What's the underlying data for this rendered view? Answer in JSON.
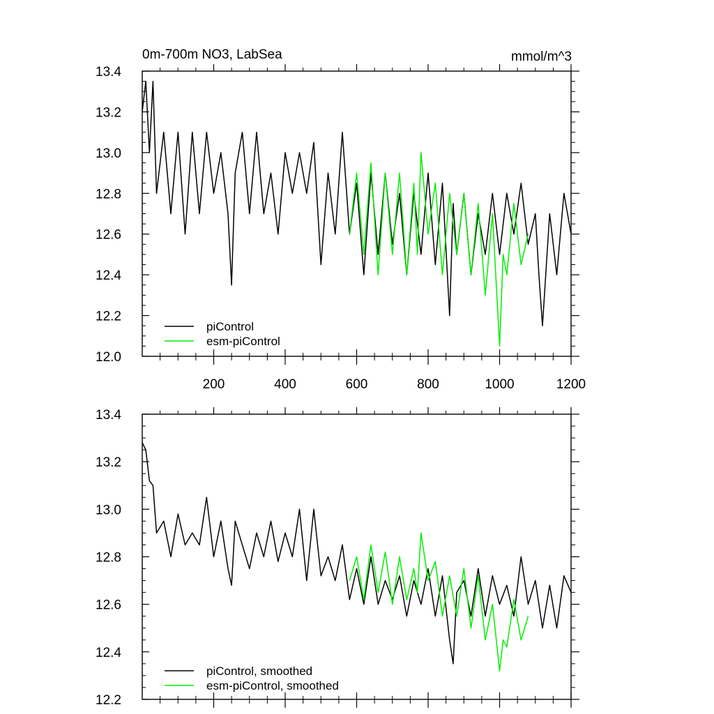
{
  "colors": {
    "series_picontrol": "#000000",
    "series_esm": "#00ee00",
    "axes": "#000000",
    "background": "#ffffff"
  },
  "chart_data": [
    {
      "type": "line",
      "title": "0m-700m NO3, LabSea",
      "units": "mmol/m^3",
      "xlabel": "",
      "ylabel": "",
      "xlim": [
        0,
        1200
      ],
      "ylim": [
        12.0,
        13.4
      ],
      "x_ticks": [
        200,
        400,
        600,
        800,
        1000,
        1200
      ],
      "x_tick_labels": [
        "200",
        "400",
        "600",
        "800",
        "1000",
        "1200"
      ],
      "y_ticks": [
        12.0,
        12.2,
        12.4,
        12.6,
        12.8,
        13.0,
        13.2,
        13.4
      ],
      "y_tick_labels": [
        "12.0",
        "12.2",
        "12.4",
        "12.6",
        "12.8",
        "13.0",
        "13.2",
        "13.4"
      ],
      "grid": false,
      "legend_position": "bottom-left",
      "series": [
        {
          "name": "piControl",
          "color": "#000000",
          "x": [
            0,
            10,
            20,
            30,
            40,
            60,
            80,
            100,
            120,
            140,
            160,
            180,
            200,
            220,
            240,
            250,
            260,
            280,
            300,
            320,
            340,
            360,
            380,
            400,
            420,
            440,
            460,
            480,
            500,
            520,
            540,
            560,
            580,
            600,
            620,
            640,
            660,
            680,
            700,
            720,
            740,
            760,
            780,
            800,
            820,
            840,
            860,
            870,
            880,
            900,
            920,
            940,
            960,
            980,
            1000,
            1020,
            1040,
            1060,
            1080,
            1100,
            1110,
            1120,
            1140,
            1160,
            1180,
            1200
          ],
          "y": [
            13.2,
            13.35,
            13.0,
            13.35,
            12.8,
            13.1,
            12.7,
            13.1,
            12.6,
            13.1,
            12.7,
            13.1,
            12.8,
            13.0,
            12.7,
            12.35,
            12.9,
            13.1,
            12.7,
            13.1,
            12.7,
            12.9,
            12.6,
            13.0,
            12.8,
            13.0,
            12.8,
            13.05,
            12.45,
            12.9,
            12.6,
            13.1,
            12.6,
            12.85,
            12.4,
            12.9,
            12.5,
            12.9,
            12.55,
            12.8,
            12.4,
            12.8,
            12.5,
            12.9,
            12.45,
            12.85,
            12.2,
            12.75,
            12.5,
            12.8,
            12.4,
            12.7,
            12.5,
            12.8,
            12.5,
            12.8,
            12.6,
            12.85,
            12.55,
            12.7,
            12.4,
            12.15,
            12.7,
            12.4,
            12.8,
            12.6
          ]
        },
        {
          "name": "esm-piControl",
          "color": "#00ee00",
          "x": [
            580,
            600,
            620,
            640,
            660,
            680,
            700,
            720,
            740,
            760,
            770,
            780,
            800,
            820,
            840,
            860,
            880,
            900,
            920,
            940,
            960,
            980,
            1000,
            1010,
            1020,
            1040,
            1060,
            1080
          ],
          "y": [
            12.6,
            12.9,
            12.5,
            12.95,
            12.4,
            12.9,
            12.5,
            12.9,
            12.4,
            12.85,
            12.5,
            13.0,
            12.6,
            12.85,
            12.4,
            12.8,
            12.5,
            12.8,
            12.4,
            12.75,
            12.3,
            12.7,
            12.05,
            12.5,
            12.4,
            12.75,
            12.45,
            12.6
          ]
        }
      ]
    },
    {
      "type": "line",
      "title": "",
      "units": "",
      "xlabel": "",
      "ylabel": "",
      "xlim": [
        0,
        1200
      ],
      "ylim": [
        12.2,
        13.4
      ],
      "x_ticks": [
        200,
        400,
        600,
        800,
        1000,
        1200
      ],
      "x_tick_labels": [],
      "y_ticks": [
        12.2,
        12.4,
        12.6,
        12.8,
        13.0,
        13.2,
        13.4
      ],
      "y_tick_labels": [
        "12.2",
        "12.4",
        "12.6",
        "12.8",
        "13.0",
        "13.2",
        "13.4"
      ],
      "grid": false,
      "legend_position": "bottom-left",
      "series": [
        {
          "name": "piControl, smoothed",
          "color": "#000000",
          "x": [
            0,
            10,
            20,
            30,
            40,
            60,
            80,
            100,
            120,
            140,
            160,
            180,
            200,
            220,
            240,
            250,
            260,
            280,
            300,
            320,
            340,
            360,
            380,
            400,
            420,
            440,
            460,
            480,
            500,
            520,
            540,
            560,
            580,
            600,
            620,
            640,
            660,
            680,
            700,
            720,
            740,
            760,
            780,
            800,
            820,
            840,
            860,
            870,
            880,
            900,
            920,
            940,
            960,
            980,
            1000,
            1020,
            1040,
            1060,
            1080,
            1100,
            1120,
            1140,
            1160,
            1180,
            1200
          ],
          "y": [
            13.28,
            13.25,
            13.12,
            13.1,
            12.9,
            12.95,
            12.8,
            12.98,
            12.85,
            12.9,
            12.85,
            13.05,
            12.8,
            12.95,
            12.75,
            12.68,
            12.95,
            12.85,
            12.75,
            12.9,
            12.8,
            12.95,
            12.78,
            12.9,
            12.8,
            13.0,
            12.7,
            13.0,
            12.72,
            12.8,
            12.7,
            12.85,
            12.62,
            12.75,
            12.6,
            12.8,
            12.6,
            12.7,
            12.62,
            12.72,
            12.55,
            12.7,
            12.6,
            12.75,
            12.55,
            12.72,
            12.45,
            12.35,
            12.65,
            12.7,
            12.55,
            12.75,
            12.55,
            12.72,
            12.6,
            12.68,
            12.55,
            12.8,
            12.6,
            12.7,
            12.5,
            12.68,
            12.5,
            12.72,
            12.65
          ]
        },
        {
          "name": "esm-piControl, smoothed",
          "color": "#00ee00",
          "x": [
            580,
            600,
            620,
            640,
            660,
            680,
            700,
            720,
            740,
            760,
            770,
            780,
            800,
            820,
            840,
            860,
            880,
            900,
            920,
            940,
            960,
            980,
            1000,
            1010,
            1020,
            1040,
            1060,
            1080
          ],
          "y": [
            12.7,
            12.8,
            12.62,
            12.85,
            12.65,
            12.82,
            12.6,
            12.8,
            12.62,
            12.75,
            12.65,
            12.9,
            12.7,
            12.78,
            12.55,
            12.72,
            12.55,
            12.75,
            12.5,
            12.72,
            12.45,
            12.6,
            12.32,
            12.45,
            12.42,
            12.62,
            12.45,
            12.55
          ]
        }
      ]
    }
  ]
}
